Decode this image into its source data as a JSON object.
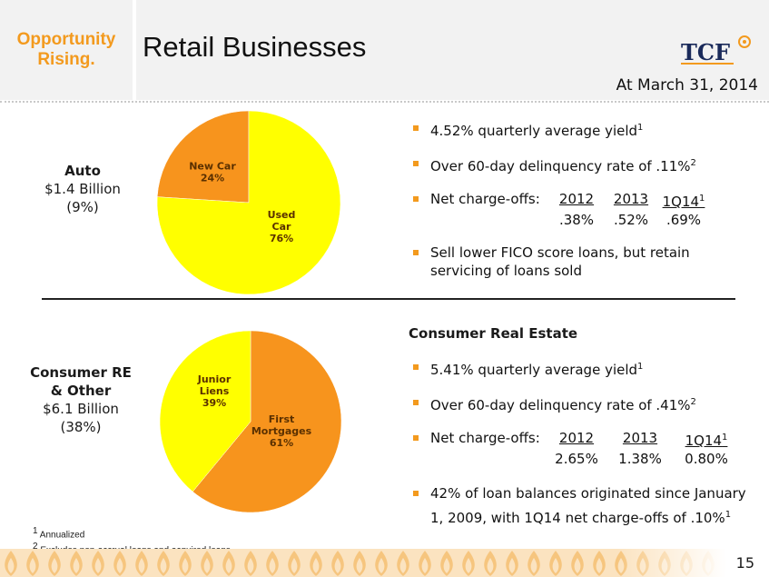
{
  "header": {
    "tagline_line1": "Opportunity",
    "tagline_line2": "Rising.",
    "title": "Retail Businesses",
    "logo_text": "TCF",
    "as_of": "At March 31, 2014"
  },
  "auto": {
    "name": "Auto",
    "amount": "$1.4 Billion",
    "share": "(9%)",
    "bullets": [
      {
        "text": "4.52% quarterly average yield",
        "sup": "1"
      },
      {
        "text": "Over 60-day delinquency rate of .11%",
        "sup": "2"
      }
    ],
    "chargeoffs_label": "Net charge-offs:",
    "chargeoffs_headers": [
      "2012",
      "2013",
      "1Q14"
    ],
    "chargeoffs_header_sup": "1",
    "chargeoffs_values": [
      ".38%",
      ".52%",
      ".69%"
    ],
    "bullet_last": "Sell lower FICO score loans, but retain servicing of loans sold"
  },
  "consumer": {
    "name_line1": "Consumer RE",
    "name_line2": "& Other",
    "amount": "$6.1 Billion",
    "share": "(38%)",
    "heading": "Consumer Real Estate",
    "bullets": [
      {
        "text": "5.41% quarterly average yield",
        "sup": "1"
      },
      {
        "text": "Over 60-day delinquency rate of .41%",
        "sup": "2"
      }
    ],
    "chargeoffs_label": "Net charge-offs:",
    "chargeoffs_headers": [
      "2012",
      "2013",
      "1Q14"
    ],
    "chargeoffs_header_sup": "1",
    "chargeoffs_values": [
      "2.65%",
      "1.38%",
      "0.80%"
    ],
    "bullet_last": "42% of loan balances originated since January 1, 2009, with 1Q14 net charge-offs of .10%",
    "bullet_last_sup": "1"
  },
  "chart_data": [
    {
      "type": "pie",
      "title": "",
      "slices": [
        {
          "label_lines": [
            "New Car"
          ],
          "value": 24,
          "value_label": "24%",
          "color": "#f7941d"
        },
        {
          "label_lines": [
            "Used",
            "Car"
          ],
          "value": 76,
          "value_label": "76%",
          "color": "#ffff00"
        }
      ]
    },
    {
      "type": "pie",
      "title": "",
      "slices": [
        {
          "label_lines": [
            "First",
            "Mortgages"
          ],
          "value": 61,
          "value_label": "61%",
          "color": "#f7941d"
        },
        {
          "label_lines": [
            "Junior",
            "Liens"
          ],
          "value": 39,
          "value_label": "39%",
          "color": "#ffff00"
        }
      ]
    }
  ],
  "footnotes": [
    {
      "mark": "1",
      "text": "Annualized"
    },
    {
      "mark": "2",
      "text": "Excludes non-accrual loans and acquired loans"
    }
  ],
  "page_number": "15",
  "colors": {
    "accent": "#f39a1e",
    "pie_orange": "#f7941d",
    "pie_yellow": "#ffff00",
    "band": "#f2f2f2"
  }
}
